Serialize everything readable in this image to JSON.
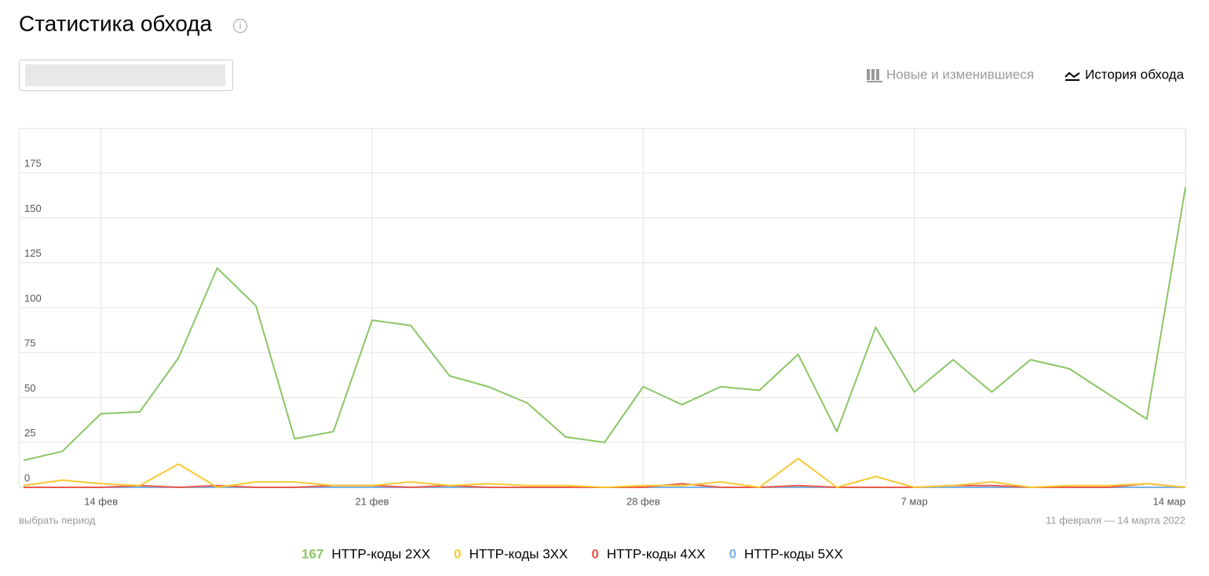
{
  "header": {
    "title": "Статистика обхода"
  },
  "tabs": [
    "Новые и изменившиеся",
    "История обхода"
  ],
  "footer": {
    "period_link": "выбрать период",
    "period": "11 февраля — 14 марта 2022"
  },
  "chart_data": {
    "type": "line",
    "categories": [
      null,
      null,
      "14 фев",
      null,
      null,
      null,
      null,
      null,
      null,
      "21 фев",
      null,
      null,
      null,
      null,
      null,
      null,
      "28 фев",
      null,
      null,
      null,
      null,
      null,
      null,
      "7 мар",
      null,
      null,
      null,
      null,
      null,
      null,
      "14 мар"
    ],
    "series": [
      {
        "name": "HTTP-коды 2XX",
        "color": "#8cc665",
        "values": [
          15,
          20,
          41,
          42,
          72,
          122,
          101,
          27,
          31,
          93,
          90,
          62,
          56,
          47,
          28,
          25,
          56,
          46,
          56,
          54,
          74,
          31,
          89,
          53,
          71,
          53,
          71,
          66,
          52,
          38,
          167
        ]
      },
      {
        "name": "HTTP-коды 3XX",
        "color": "#f7c934",
        "values": [
          1,
          4,
          2,
          1,
          13,
          0,
          3,
          3,
          1,
          1,
          3,
          1,
          2,
          1,
          1,
          0,
          1,
          1,
          3,
          0,
          16,
          0,
          6,
          0,
          1,
          3,
          0,
          1,
          1,
          2,
          0
        ]
      },
      {
        "name": "HTTP-коды 4XX",
        "color": "#ec5a4a",
        "values": [
          0,
          0,
          0,
          1,
          0,
          1,
          0,
          0,
          1,
          1,
          0,
          1,
          0,
          0,
          0,
          0,
          0,
          2,
          0,
          0,
          1,
          0,
          0,
          0,
          1,
          1,
          0,
          0,
          0,
          2,
          0
        ]
      },
      {
        "name": "HTTP-коды 5XX",
        "color": "#7ab3e8",
        "values": [
          0,
          0,
          0,
          0,
          0,
          0,
          0,
          0,
          0,
          0,
          0,
          0,
          0,
          0,
          0,
          0,
          0,
          0,
          0,
          0,
          0,
          0,
          0,
          0,
          0,
          0,
          0,
          0,
          0,
          0,
          0
        ]
      }
    ],
    "ylim": [
      0,
      200
    ],
    "yticks": [
      0,
      25,
      50,
      75,
      100,
      125,
      150,
      175
    ],
    "grid": true
  }
}
